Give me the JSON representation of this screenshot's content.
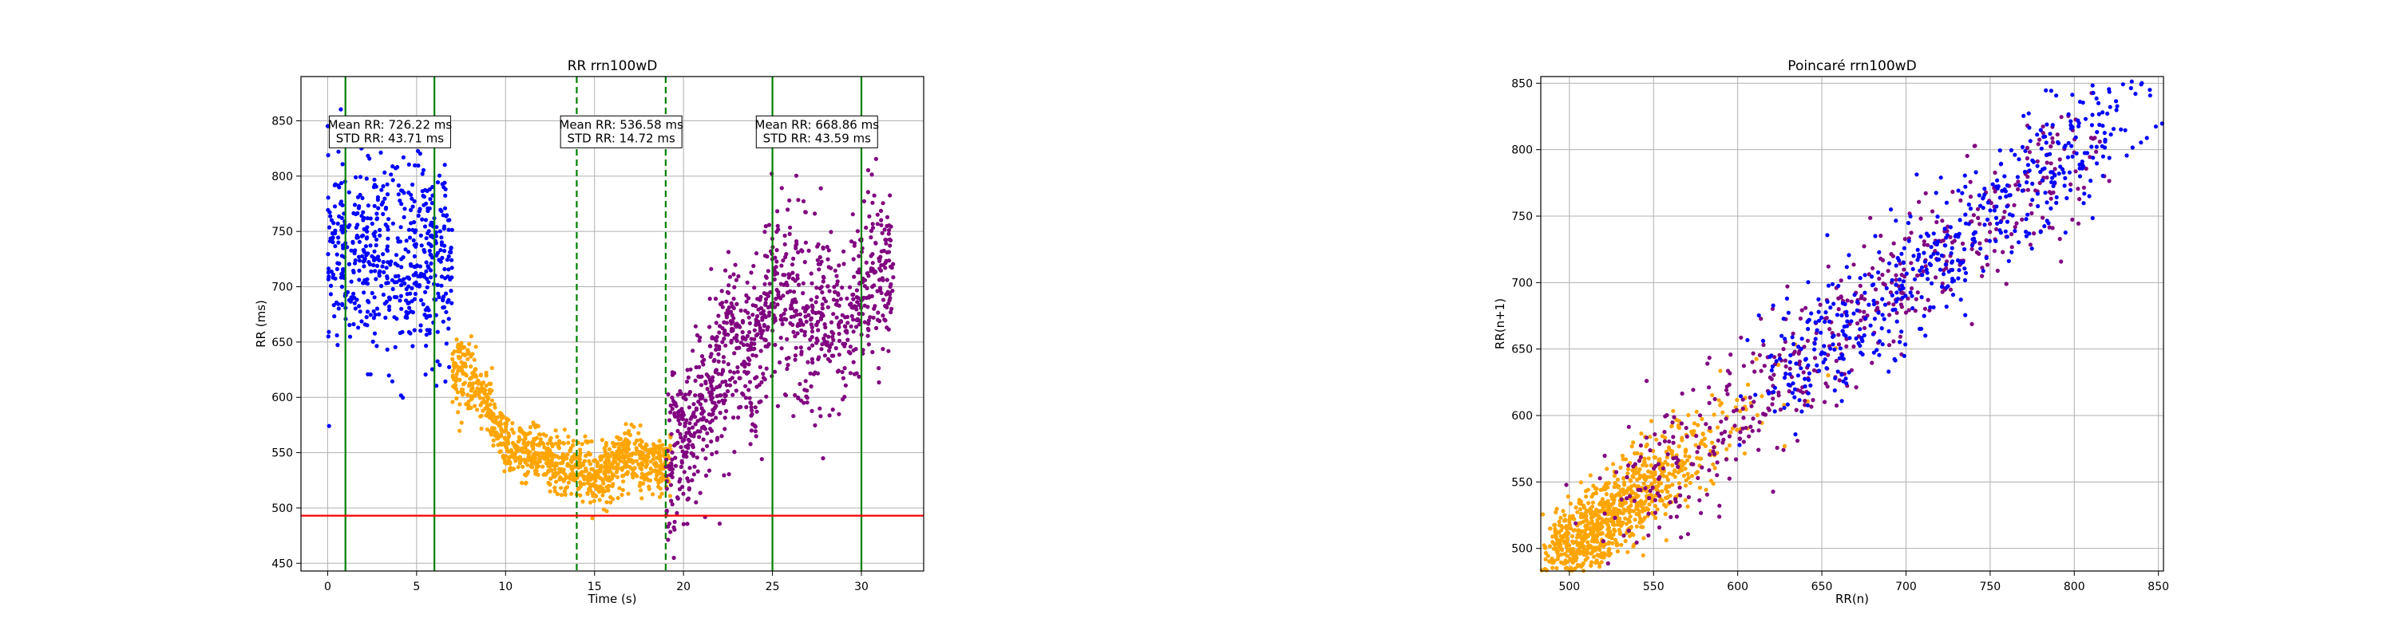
{
  "chart_data": [
    {
      "type": "scatter",
      "title": "RR rrn100wD",
      "xlabel": "Time (s)",
      "ylabel": "RR (ms)",
      "xlim": [
        -1.5,
        33.5
      ],
      "ylim": [
        443,
        890
      ],
      "xticks": [
        0,
        5,
        10,
        15,
        20,
        25,
        30
      ],
      "yticks": [
        450,
        500,
        550,
        600,
        650,
        700,
        750,
        800,
        850
      ],
      "grid": true,
      "colors": {
        "blue": "#0000ff",
        "orange": "#ffa500",
        "purple": "#800080",
        "green": "#008000",
        "red": "#ff0000"
      },
      "segments": [
        {
          "color": "blue",
          "t_start": 0.0,
          "t_end": 7.0,
          "mean": 726.22,
          "std": 43.71
        },
        {
          "color": "orange",
          "t_start": 7.0,
          "t_end": 19.3,
          "trend": [
            [
              7.0,
              625
            ],
            [
              8.0,
              620
            ],
            [
              9.0,
              595
            ],
            [
              10.0,
              555
            ],
            [
              11.0,
              548
            ],
            [
              12.0,
              545
            ],
            [
              13.0,
              540
            ],
            [
              14.0,
              535
            ],
            [
              15.0,
              528
            ],
            [
              16.0,
              537
            ],
            [
              17.0,
              548
            ],
            [
              18.0,
              540
            ],
            [
              19.3,
              538
            ]
          ]
        },
        {
          "color": "purple",
          "t_start": 19.0,
          "t_end": 31.8,
          "trend": [
            [
              19.0,
              545
            ],
            [
              20.0,
              560
            ],
            [
              21.0,
              590
            ],
            [
              22.0,
              620
            ],
            [
              23.0,
              650
            ],
            [
              24.0,
              640
            ],
            [
              25.0,
              700
            ],
            [
              26.0,
              680
            ],
            [
              27.0,
              665
            ],
            [
              28.0,
              680
            ],
            [
              29.0,
              665
            ],
            [
              30.0,
              690
            ],
            [
              31.0,
              720
            ],
            [
              31.8,
              700
            ]
          ]
        }
      ],
      "vlines": [
        {
          "x": 1.0,
          "style": "solid"
        },
        {
          "x": 6.0,
          "style": "solid"
        },
        {
          "x": 14.0,
          "style": "dashed"
        },
        {
          "x": 19.0,
          "style": "dashed"
        },
        {
          "x": 25.0,
          "style": "solid"
        },
        {
          "x": 30.0,
          "style": "solid"
        }
      ],
      "hline": {
        "y": 493
      },
      "annotations": [
        {
          "x": 3.5,
          "y": 840,
          "lines": [
            "Mean RR: 726.22 ms",
            "STD RR: 43.71 ms"
          ]
        },
        {
          "x": 16.5,
          "y": 840,
          "lines": [
            "Mean RR: 536.58 ms",
            "STD RR: 14.72 ms"
          ]
        },
        {
          "x": 27.5,
          "y": 840,
          "lines": [
            "Mean RR: 668.86 ms",
            "STD RR: 43.59 ms"
          ]
        }
      ]
    },
    {
      "type": "scatter",
      "title": "Poincaré rrn100wD",
      "xlabel": "RR(n)",
      "ylabel": "RR(n+1)",
      "xlim": [
        483,
        853
      ],
      "ylim": [
        483,
        855
      ],
      "xticks": [
        500,
        550,
        600,
        650,
        700,
        750,
        800,
        850
      ],
      "yticks": [
        500,
        550,
        600,
        650,
        700,
        750,
        800,
        850
      ],
      "grid": true,
      "clusters": [
        {
          "color": "orange",
          "range": [
            495,
            660
          ],
          "spread": 14
        },
        {
          "color": "purple",
          "range": [
            525,
            810
          ],
          "spread": 22
        },
        {
          "color": "blue",
          "range": [
            620,
            835
          ],
          "spread": 22
        }
      ]
    }
  ]
}
